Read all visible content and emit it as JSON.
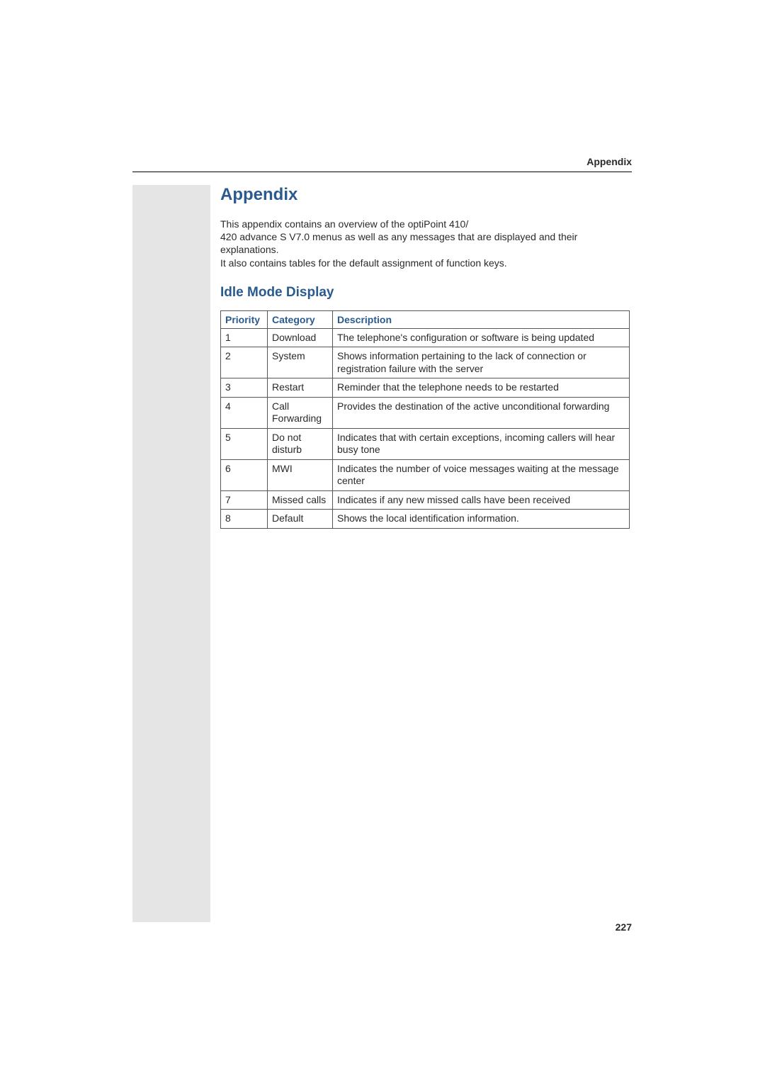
{
  "header": {
    "running_title": "Appendix"
  },
  "content": {
    "heading_main": "Appendix",
    "intro_line1": "This appendix contains an overview of the optiPoint 410/",
    "intro_line2": "420 advance S V7.0 menus as well as any messages that are displayed and their explanations.",
    "intro_line3": "It also contains tables for the default assignment of function keys.",
    "heading_sub": "Idle Mode Display",
    "table": {
      "columns": {
        "priority": "Priority",
        "category": "Category",
        "description": "Description"
      },
      "rows": [
        {
          "priority": "1",
          "category": "Download",
          "description": "The telephone's configuration or software is being updated"
        },
        {
          "priority": "2",
          "category": "System",
          "description": "Shows information pertaining to the lack of connection or registration failure with the server"
        },
        {
          "priority": "3",
          "category": "Restart",
          "description": "Reminder that the telephone needs to be restarted"
        },
        {
          "priority": "4",
          "category": "Call Forwarding",
          "description": "Provides the destination of the active unconditional forwarding"
        },
        {
          "priority": "5",
          "category": "Do not disturb",
          "description": "Indicates that with certain exceptions, incoming callers will hear busy tone"
        },
        {
          "priority": "6",
          "category": "MWI",
          "description": "Indicates the number of voice messages waiting at the message center"
        },
        {
          "priority": "7",
          "category": "Missed calls",
          "description": "Indicates if any new missed calls have been received"
        },
        {
          "priority": "8",
          "category": "Default",
          "description": "Shows the local identification information."
        }
      ]
    }
  },
  "footer": {
    "page_number": "227"
  },
  "styling": {
    "accent_color": "#2a5a8e",
    "text_color": "#2a2a2a",
    "sidebar_color": "#e5e5e5",
    "border_color": "#555555",
    "background_color": "#ffffff",
    "body_font_size": 14,
    "h1_font_size": 24,
    "h2_font_size": 19
  }
}
